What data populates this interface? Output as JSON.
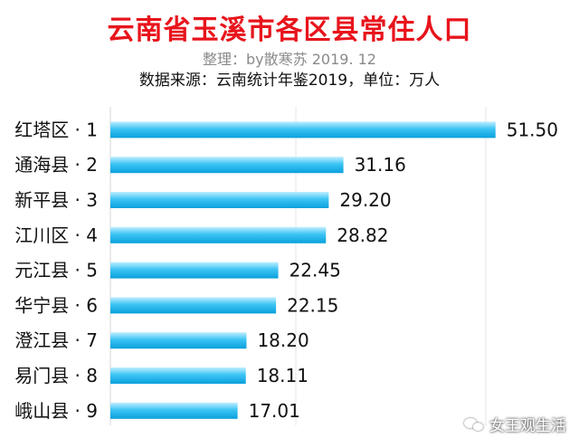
{
  "header": {
    "title": "云南省玉溪市各区县常住人口",
    "credit": "整理：by散寒苏 2019. 12",
    "source": "数据来源：云南统计年鉴2019，单位：万人"
  },
  "watermark": {
    "text": "女王观生活",
    "icon": "wechat-icon"
  },
  "colors": {
    "title": "#e8141c",
    "bar_light": "#bfeeff",
    "bar_mid": "#3cc4f4",
    "bar_dark": "#0aa0dc",
    "grid": "#e4e4e4"
  },
  "chart_data": {
    "type": "bar",
    "orientation": "horizontal",
    "categories": [
      "红塔区 · 1",
      "通海县 · 2",
      "新平县 · 3",
      "江川区 · 4",
      "元江县 · 5",
      "华宁县 · 6",
      "澄江县 · 7",
      "易门县 · 8",
      "峨山县 · 9"
    ],
    "values": [
      51.5,
      31.16,
      29.2,
      28.82,
      22.45,
      22.15,
      18.2,
      18.11,
      17.01
    ],
    "value_labels": [
      "51.50",
      "31.16",
      "29.20",
      "28.82",
      "22.45",
      "22.15",
      "18.20",
      "18.11",
      "17.01"
    ],
    "xlim": [
      0,
      60
    ],
    "grid": true
  }
}
